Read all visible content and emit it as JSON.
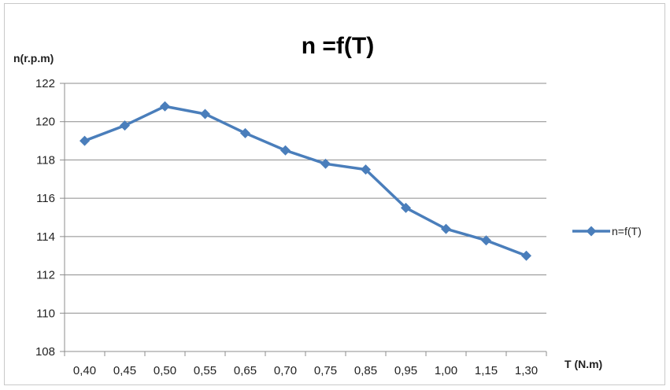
{
  "chart_data": {
    "type": "line",
    "title": "n =f(T)",
    "ylabel": "n(r.p.m)",
    "xlabel": "T (N.m)",
    "categories": [
      "0,40",
      "0,45",
      "0,50",
      "0,55",
      "0,65",
      "0,70",
      "0,75",
      "0,85",
      "0,95",
      "1,00",
      "1,15",
      "1,30"
    ],
    "series": [
      {
        "name": "n=f(T)",
        "values": [
          119.0,
          119.8,
          120.8,
          120.4,
          119.4,
          118.5,
          117.8,
          117.5,
          115.5,
          114.4,
          113.8,
          113.0
        ],
        "color": "#4a7ebb",
        "marker": "diamond"
      }
    ],
    "ylim": [
      108,
      122
    ],
    "yticks": [
      "108",
      "110",
      "112",
      "114",
      "116",
      "118",
      "120",
      "122"
    ],
    "ytick_values": [
      108,
      110,
      112,
      114,
      116,
      118,
      120,
      122
    ],
    "grid": "horizontal",
    "legend": "right"
  }
}
